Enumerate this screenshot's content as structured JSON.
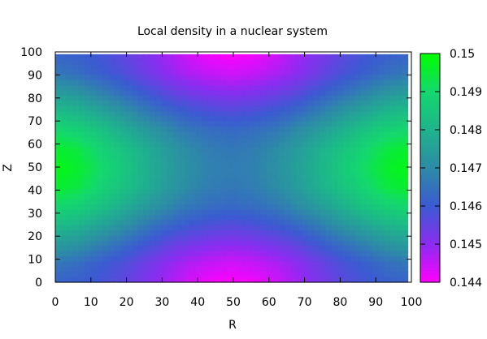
{
  "chart_data": {
    "type": "heatmap",
    "title": "Local density in a nuclear system",
    "xlabel": "R",
    "ylabel": "Z",
    "x_ticks": [
      "0",
      "10",
      "20",
      "30",
      "40",
      "50",
      "60",
      "70",
      "80",
      "90",
      "100"
    ],
    "y_ticks": [
      "0",
      "10",
      "20",
      "30",
      "40",
      "50",
      "60",
      "70",
      "80",
      "90",
      "100"
    ],
    "xlim": [
      0,
      100
    ],
    "ylim": [
      0,
      100
    ],
    "data_extent": {
      "x": [
        0,
        99
      ],
      "y": [
        0,
        99
      ]
    },
    "colorbar": {
      "range": [
        0.144,
        0.15
      ],
      "ticks": [
        "0.144",
        "0.145",
        "0.146",
        "0.147",
        "0.148",
        "0.149",
        "0.15"
      ]
    },
    "colormap": [
      {
        "value": 0.144,
        "color": "#ff00ff"
      },
      {
        "value": 0.145,
        "color": "#8a2df0"
      },
      {
        "value": 0.146,
        "color": "#3c5ad2"
      },
      {
        "value": 0.147,
        "color": "#2d8ca6"
      },
      {
        "value": 0.148,
        "color": "#1eb48c"
      },
      {
        "value": 0.149,
        "color": "#14d76e"
      },
      {
        "value": 0.15,
        "color": "#00ff00"
      }
    ],
    "field": {
      "z": [
        [
          0.1462,
          0.1461,
          0.1459,
          0.1456,
          0.1452,
          0.1448,
          0.1444,
          0.1441,
          0.144,
          0.1441,
          0.1444,
          0.1448,
          0.1452,
          0.1456,
          0.1459,
          0.1461,
          0.1462
        ],
        [
          0.1466,
          0.1464,
          0.1461,
          0.1458,
          0.1454,
          0.145,
          0.1447,
          0.1445,
          0.1444,
          0.1445,
          0.1447,
          0.145,
          0.1454,
          0.1458,
          0.1461,
          0.1464,
          0.1466
        ],
        [
          0.1474,
          0.1472,
          0.1468,
          0.1464,
          0.146,
          0.1456,
          0.1453,
          0.1451,
          0.145,
          0.1451,
          0.1453,
          0.1456,
          0.146,
          0.1464,
          0.1468,
          0.1472,
          0.1474
        ],
        [
          0.1482,
          0.148,
          0.1476,
          0.1472,
          0.1467,
          0.1463,
          0.146,
          0.1458,
          0.1457,
          0.1458,
          0.146,
          0.1463,
          0.1467,
          0.1472,
          0.1476,
          0.148,
          0.1482
        ],
        [
          0.149,
          0.1488,
          0.1484,
          0.1479,
          0.1474,
          0.147,
          0.1466,
          0.1464,
          0.1463,
          0.1464,
          0.1466,
          0.147,
          0.1474,
          0.1479,
          0.1484,
          0.1488,
          0.149
        ],
        [
          0.1496,
          0.1494,
          0.1489,
          0.1484,
          0.1479,
          0.1474,
          0.147,
          0.1467,
          0.1466,
          0.1467,
          0.147,
          0.1474,
          0.1479,
          0.1484,
          0.1489,
          0.1494,
          0.1496
        ],
        [
          0.1498,
          0.1496,
          0.1491,
          0.1486,
          0.148,
          0.1475,
          0.1471,
          0.1468,
          0.1467,
          0.1468,
          0.1471,
          0.1475,
          0.148,
          0.1486,
          0.1491,
          0.1496,
          0.1498
        ],
        [
          0.1496,
          0.1494,
          0.1489,
          0.1484,
          0.1479,
          0.1474,
          0.147,
          0.1467,
          0.1466,
          0.1467,
          0.147,
          0.1474,
          0.1479,
          0.1484,
          0.1489,
          0.1494,
          0.1496
        ],
        [
          0.149,
          0.1488,
          0.1484,
          0.1479,
          0.1474,
          0.147,
          0.1466,
          0.1464,
          0.1463,
          0.1464,
          0.1466,
          0.147,
          0.1474,
          0.1479,
          0.1484,
          0.1488,
          0.149
        ],
        [
          0.1482,
          0.148,
          0.1476,
          0.1472,
          0.1467,
          0.1463,
          0.146,
          0.1458,
          0.1457,
          0.1458,
          0.146,
          0.1463,
          0.1467,
          0.1472,
          0.1476,
          0.148,
          0.1482
        ],
        [
          0.1474,
          0.1472,
          0.1468,
          0.1464,
          0.146,
          0.1456,
          0.1453,
          0.1451,
          0.145,
          0.1451,
          0.1453,
          0.1456,
          0.146,
          0.1464,
          0.1468,
          0.1472,
          0.1474
        ],
        [
          0.1466,
          0.1464,
          0.1461,
          0.1458,
          0.1454,
          0.145,
          0.1447,
          0.1445,
          0.1444,
          0.1445,
          0.1447,
          0.145,
          0.1454,
          0.1458,
          0.1461,
          0.1464,
          0.1466
        ],
        [
          0.1462,
          0.1461,
          0.1459,
          0.1456,
          0.1452,
          0.1448,
          0.1444,
          0.1441,
          0.144,
          0.1441,
          0.1444,
          0.1448,
          0.1452,
          0.1456,
          0.1459,
          0.1461,
          0.1462
        ]
      ]
    },
    "grid": false,
    "legend": "colorbar-right"
  }
}
